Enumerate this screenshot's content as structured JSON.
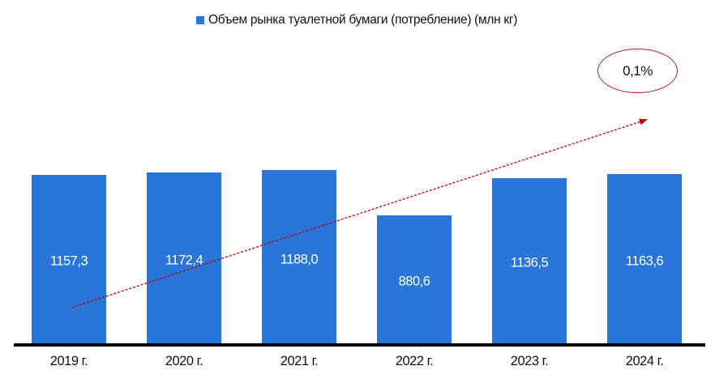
{
  "legend": {
    "label": "Объем рынка туалетной бумаги (потребление) (млн кг)",
    "color": "#2a75d9"
  },
  "bars": [
    {
      "year": "2019 г.",
      "value": 1157.3,
      "label": "1157,3"
    },
    {
      "year": "2020 г.",
      "value": 1172.4,
      "label": "1172,4"
    },
    {
      "year": "2021 г.",
      "value": 1188.0,
      "label": "1188,0"
    },
    {
      "year": "2022 г.",
      "value": 880.6,
      "label": "880,6"
    },
    {
      "year": "2023 г.",
      "value": 1136.5,
      "label": "1136,5"
    },
    {
      "year": "2024 г.",
      "value": 1163.6,
      "label": "1163,6"
    }
  ],
  "annotation": {
    "text": "0,1%",
    "arrow_color": "#c00000",
    "ellipse_color": "#b22222"
  },
  "chart_data": {
    "type": "bar",
    "title": "",
    "categories": [
      "2019 г.",
      "2020 г.",
      "2021 г.",
      "2022 г.",
      "2023 г.",
      "2024 г."
    ],
    "series": [
      {
        "name": "Объем рынка туалетной бумаги (потребление) (млн кг)",
        "values": [
          1157.3,
          1172.4,
          1188.0,
          880.6,
          1136.5,
          1163.6
        ],
        "color": "#2a75d9"
      }
    ],
    "xlabel": "",
    "ylabel": "",
    "ylim": [
      0,
      1400
    ],
    "grid": false,
    "legend_position": "top",
    "data_labels": [
      "1157,3",
      "1172,4",
      "1188,0",
      "880,6",
      "1136,5",
      "1163,6"
    ],
    "annotations": [
      {
        "type": "trend-arrow",
        "from": "2019 г.",
        "to": "2024 г.",
        "text": "0,1%",
        "style": "dashed red arrow with circled label"
      }
    ]
  }
}
